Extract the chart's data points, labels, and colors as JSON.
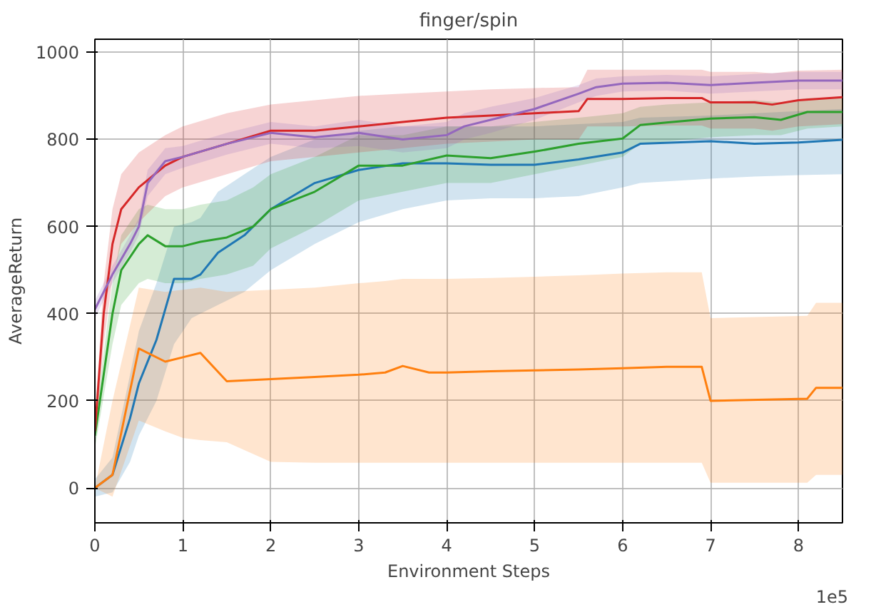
{
  "chart_data": {
    "type": "line",
    "title": "finger/spin",
    "xlabel": "Environment Steps",
    "ylabel": "AverageReturn",
    "annotations": [
      "1e5"
    ],
    "xlim": [
      0,
      8.5
    ],
    "ylim": [
      -80,
      1030
    ],
    "xticks": [
      0,
      1,
      2,
      3,
      4,
      5,
      6,
      7,
      8
    ],
    "yticks": [
      0,
      200,
      400,
      600,
      800,
      1000
    ],
    "grid": true,
    "marker": "none",
    "line_style": "solid",
    "series": [
      {
        "color": "#1f77b4",
        "x": [
          0,
          0.2,
          0.4,
          0.5,
          0.7,
          0.9,
          1.1,
          1.2,
          1.4,
          1.7,
          2,
          2.5,
          3,
          3.5,
          4,
          4.5,
          5,
          5.5,
          6,
          6.2,
          7,
          7.5,
          8,
          8.5
        ],
        "values": [
          0,
          30,
          160,
          240,
          340,
          480,
          480,
          490,
          540,
          580,
          640,
          700,
          730,
          745,
          745,
          742,
          742,
          754,
          770,
          790,
          796,
          790,
          793,
          799
        ],
        "lower": [
          -20,
          -10,
          60,
          120,
          200,
          330,
          390,
          400,
          420,
          450,
          500,
          560,
          610,
          640,
          660,
          665,
          665,
          670,
          690,
          700,
          710,
          715,
          718,
          720
        ],
        "upper": [
          20,
          70,
          260,
          360,
          470,
          600,
          610,
          620,
          680,
          720,
          760,
          800,
          820,
          830,
          830,
          830,
          830,
          835,
          840,
          850,
          855,
          860,
          865,
          870
        ]
      },
      {
        "color": "#ff7f0e",
        "x": [
          0,
          0.2,
          0.5,
          0.8,
          1,
          1.2,
          1.5,
          2,
          2.5,
          3,
          3.3,
          3.5,
          3.8,
          4,
          4.5,
          5,
          5.5,
          6,
          6.5,
          6.9,
          7,
          8.1,
          8.2,
          8.5
        ],
        "values": [
          0,
          30,
          320,
          290,
          300,
          310,
          245,
          250,
          255,
          260,
          265,
          280,
          265,
          265,
          268,
          270,
          272,
          275,
          278,
          278,
          200,
          205,
          230,
          230
        ],
        "lower": [
          0,
          -20,
          155,
          130,
          115,
          110,
          105,
          60,
          58,
          58,
          58,
          58,
          58,
          58,
          58,
          58,
          58,
          58,
          58,
          58,
          12,
          12,
          30,
          30
        ],
        "upper": [
          0,
          200,
          460,
          450,
          455,
          460,
          450,
          455,
          460,
          470,
          475,
          480,
          480,
          480,
          482,
          485,
          488,
          492,
          495,
          495,
          390,
          395,
          425,
          425
        ]
      },
      {
        "color": "#2ca02c",
        "x": [
          0,
          0.2,
          0.3,
          0.5,
          0.6,
          0.8,
          1,
          1.2,
          1.5,
          1.8,
          2,
          2.5,
          3,
          3.5,
          4,
          4.5,
          5,
          5.5,
          6,
          6.2,
          6.5,
          7,
          7.5,
          7.8,
          8.1,
          8.5
        ],
        "values": [
          120,
          400,
          500,
          560,
          580,
          555,
          555,
          565,
          575,
          600,
          640,
          680,
          740,
          740,
          763,
          757,
          772,
          790,
          802,
          833,
          839,
          848,
          851,
          845,
          863,
          863
        ],
        "lower": [
          90,
          330,
          420,
          470,
          480,
          470,
          470,
          480,
          490,
          510,
          550,
          600,
          660,
          680,
          700,
          700,
          720,
          740,
          760,
          790,
          795,
          805,
          810,
          810,
          825,
          830
        ],
        "upper": [
          150,
          470,
          580,
          640,
          650,
          640,
          640,
          650,
          660,
          690,
          720,
          760,
          810,
          810,
          830,
          830,
          840,
          850,
          860,
          875,
          880,
          885,
          890,
          885,
          895,
          895
        ]
      },
      {
        "color": "#d62728",
        "x": [
          0,
          0.1,
          0.2,
          0.3,
          0.5,
          0.8,
          1,
          1.5,
          2,
          2.5,
          3,
          3.5,
          4,
          4.5,
          5,
          5.5,
          5.6,
          6,
          6.5,
          6.9,
          7,
          7.5,
          7.7,
          8,
          8.5
        ],
        "values": [
          130,
          400,
          560,
          640,
          690,
          740,
          760,
          790,
          820,
          820,
          830,
          840,
          850,
          855,
          860,
          865,
          893,
          893,
          895,
          895,
          885,
          885,
          880,
          890,
          897
        ],
        "lower": [
          100,
          330,
          480,
          560,
          610,
          670,
          690,
          720,
          750,
          760,
          770,
          780,
          790,
          795,
          800,
          800,
          830,
          830,
          832,
          832,
          825,
          825,
          820,
          830,
          835
        ],
        "upper": [
          160,
          470,
          640,
          720,
          770,
          810,
          830,
          860,
          880,
          890,
          900,
          905,
          910,
          915,
          918,
          920,
          960,
          960,
          960,
          960,
          955,
          955,
          952,
          958,
          960
        ]
      },
      {
        "color": "#9467bd",
        "x": [
          0,
          0.2,
          0.4,
          0.5,
          0.6,
          0.8,
          1,
          1.5,
          2,
          2.5,
          3,
          3.5,
          4,
          4.2,
          4.5,
          5,
          5.5,
          5.7,
          6,
          6.5,
          7,
          7.5,
          8,
          8.5
        ],
        "values": [
          410,
          490,
          560,
          600,
          700,
          750,
          760,
          790,
          815,
          805,
          815,
          800,
          810,
          830,
          845,
          870,
          905,
          920,
          928,
          930,
          925,
          930,
          935,
          935
        ],
        "lower": [
          390,
          470,
          540,
          580,
          670,
          720,
          735,
          765,
          790,
          780,
          785,
          770,
          780,
          800,
          815,
          845,
          885,
          900,
          910,
          912,
          905,
          910,
          915,
          915
        ],
        "upper": [
          430,
          510,
          580,
          620,
          730,
          780,
          785,
          815,
          840,
          830,
          845,
          830,
          840,
          860,
          875,
          895,
          925,
          940,
          945,
          948,
          945,
          950,
          955,
          955
        ]
      }
    ]
  }
}
